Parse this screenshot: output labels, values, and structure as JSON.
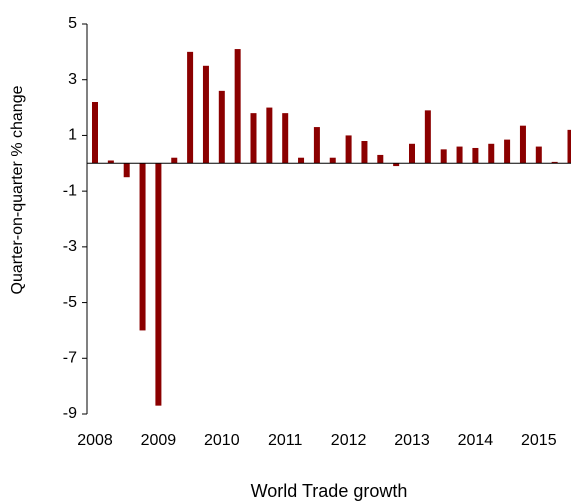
{
  "chart_data": {
    "type": "bar",
    "title": "World Trade growth",
    "y_label": "Quarter-on-quarter % change",
    "categories": [
      "2008",
      null,
      null,
      null,
      "2009",
      null,
      null,
      null,
      "2010",
      null,
      null,
      null,
      "2011",
      null,
      null,
      null,
      "2012",
      null,
      null,
      null,
      "2013",
      null,
      null,
      null,
      "2014",
      null,
      null,
      null,
      "2015",
      null,
      null
    ],
    "values": [
      2.2,
      0.1,
      -0.5,
      -6.0,
      -8.7,
      0.2,
      4.0,
      3.5,
      2.6,
      4.1,
      1.8,
      2.0,
      1.8,
      0.2,
      1.3,
      0.2,
      1.0,
      0.8,
      0.3,
      -0.1,
      0.7,
      1.9,
      0.5,
      0.6,
      0.55,
      0.7,
      0.85,
      1.35,
      0.6,
      0.05,
      1.2
    ],
    "color": "#8b0000",
    "ylim": [
      -9,
      5
    ],
    "yticks": [
      5,
      3,
      1,
      -1,
      -3,
      -5,
      -7,
      -9
    ]
  }
}
